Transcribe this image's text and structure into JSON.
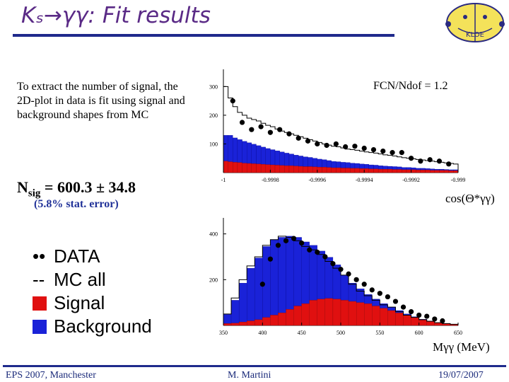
{
  "slide": {
    "title": "Kₛ→γγ: Fit results",
    "intro": "To extract the number of signal, the 2D-plot in data is fit using signal and background shapes from MC",
    "nsig_label": "N",
    "nsig_sub": "sig",
    "nsig_value": " = 600.3 ± 34.8",
    "stat_error": "(5.8% stat. error)",
    "fcn": "FCN/Ndof = 1.2",
    "legend": [
      {
        "mark": "••",
        "label": "DATA"
      },
      {
        "mark": "--",
        "label": "MC all"
      },
      {
        "mark": "",
        "label": "Signal",
        "color": "#e01010"
      },
      {
        "mark": "",
        "label": "Background",
        "color": "#1a22d8"
      }
    ],
    "xlabel_top": "cos(Θ*γγ)",
    "xlabel_bottom": "Mγγ (MeV)",
    "footer_left": "EPS 2007, Manchester",
    "footer_center": "M. Martini",
    "footer_right": "19/07/2007",
    "logo_text": "KLOE",
    "colors": {
      "title": "#5a2a86",
      "rule": "#1f2a8c",
      "signal": "#e01010",
      "background": "#1a22d8"
    }
  },
  "chart_data": [
    {
      "type": "bar",
      "title": "",
      "xlabel": "cos(Θ*γγ)",
      "ylabel": "",
      "x_ticks": [
        "-1",
        "-0.9998",
        "-0.9996",
        "-0.9994",
        "-0.9992",
        "-0.999"
      ],
      "y_ticks": [
        100,
        200,
        300
      ],
      "xlim": [
        -1,
        -0.999
      ],
      "ylim": [
        0,
        360
      ],
      "bin_edges_start": -1.0,
      "bin_width": 2e-05,
      "series": [
        {
          "name": "Signal",
          "values": [
            40,
            38,
            36,
            35,
            33,
            32,
            31,
            30,
            29,
            28,
            27,
            26,
            25,
            24,
            24,
            23,
            22,
            21,
            21,
            20,
            19,
            19,
            18,
            17,
            17,
            16,
            16,
            15,
            15,
            14,
            14,
            13,
            13,
            12,
            12,
            12,
            11,
            11,
            10,
            10,
            10,
            9,
            9,
            9,
            8,
            8,
            8,
            8,
            7,
            7
          ]
        },
        {
          "name": "Background",
          "values": [
            90,
            92,
            85,
            80,
            76,
            72,
            68,
            64,
            60,
            56,
            53,
            50,
            47,
            44,
            41,
            38,
            36,
            34,
            32,
            30,
            28,
            26,
            24,
            22,
            21,
            20,
            19,
            18,
            17,
            16,
            15,
            14,
            13,
            12,
            11,
            10,
            10,
            9,
            8,
            8,
            7,
            6,
            6,
            5,
            5,
            4,
            4,
            3,
            3,
            3
          ]
        },
        {
          "name": "MC all",
          "values": [
            300,
            260,
            230,
            210,
            200,
            190,
            185,
            180,
            172,
            165,
            160,
            152,
            145,
            140,
            135,
            130,
            125,
            120,
            115,
            110,
            105,
            100,
            96,
            92,
            90,
            86,
            82,
            80,
            78,
            75,
            72,
            70,
            68,
            65,
            62,
            60,
            58,
            55,
            52,
            50,
            48,
            46,
            44,
            42,
            40,
            38,
            36,
            34,
            32,
            30
          ]
        }
      ],
      "data_points": {
        "x": [
          -0.99996,
          -0.99992,
          -0.99988,
          -0.99984,
          -0.9998,
          -0.99976,
          -0.99972,
          -0.99968,
          -0.99964,
          -0.9996,
          -0.99956,
          -0.99952,
          -0.99948,
          -0.99944,
          -0.9994,
          -0.99936,
          -0.99932,
          -0.99928,
          -0.99924,
          -0.9992,
          -0.99916,
          -0.99912,
          -0.99908,
          -0.99904
        ],
        "y": [
          250,
          175,
          150,
          160,
          140,
          150,
          135,
          120,
          110,
          100,
          95,
          100,
          90,
          92,
          85,
          80,
          75,
          70,
          70,
          50,
          40,
          45,
          40,
          30
        ]
      }
    },
    {
      "type": "bar",
      "title": "",
      "xlabel": "Mγγ (MeV)",
      "ylabel": "",
      "x_ticks": [
        "350",
        "400",
        "450",
        "500",
        "550",
        "600",
        "650"
      ],
      "y_ticks": [
        200,
        400
      ],
      "xlim": [
        350,
        650
      ],
      "ylim": [
        0,
        470
      ],
      "bin_edges_start": 350,
      "bin_width": 10,
      "series": [
        {
          "name": "Signal",
          "values": [
            8,
            10,
            15,
            20,
            25,
            35,
            45,
            55,
            70,
            85,
            95,
            110,
            115,
            118,
            115,
            110,
            105,
            100,
            95,
            85,
            75,
            65,
            55,
            45,
            35,
            25,
            18,
            12,
            8,
            5
          ]
        },
        {
          "name": "Background",
          "values": [
            40,
            100,
            170,
            230,
            270,
            310,
            330,
            330,
            320,
            300,
            270,
            240,
            210,
            180,
            150,
            110,
            80,
            60,
            40,
            30,
            20,
            15,
            10,
            5,
            3,
            2,
            1,
            0,
            0,
            0
          ]
        },
        {
          "name": "MC all",
          "values": [
            50,
            120,
            200,
            260,
            300,
            350,
            375,
            390,
            385,
            370,
            345,
            330,
            310,
            280,
            250,
            220,
            180,
            150,
            130,
            110,
            90,
            80,
            60,
            45,
            35,
            25,
            18,
            12,
            8,
            5
          ]
        }
      ],
      "data_points": {
        "x": [
          400,
          410,
          420,
          430,
          440,
          450,
          460,
          470,
          480,
          490,
          500,
          510,
          520,
          530,
          540,
          550,
          560,
          570,
          580,
          590,
          600,
          610,
          620,
          630
        ],
        "y": [
          180,
          290,
          350,
          370,
          380,
          360,
          330,
          320,
          300,
          270,
          245,
          225,
          200,
          180,
          155,
          140,
          125,
          105,
          80,
          60,
          45,
          40,
          28,
          20
        ]
      }
    }
  ]
}
